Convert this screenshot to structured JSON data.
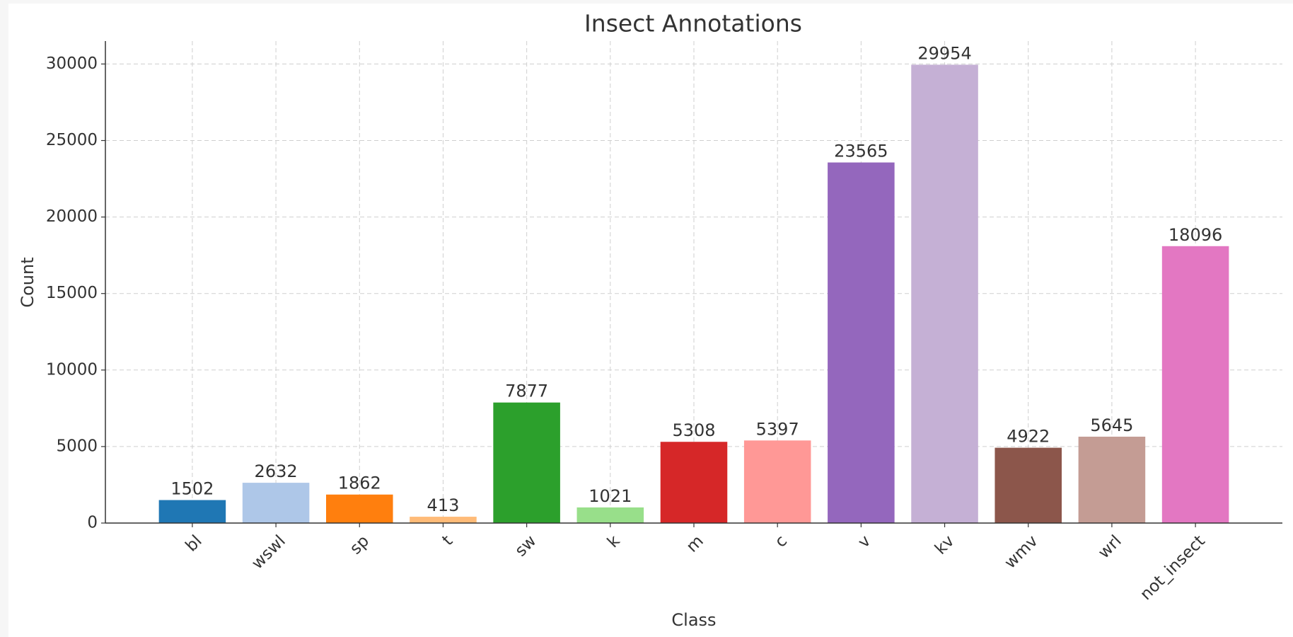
{
  "chart_data": {
    "type": "bar",
    "title": "Insect Annotations",
    "xlabel": "Class",
    "ylabel": "Count",
    "categories": [
      "bl",
      "wswl",
      "sp",
      "t",
      "sw",
      "k",
      "m",
      "c",
      "v",
      "kv",
      "wmv",
      "wrl",
      "not_insect"
    ],
    "values": [
      1502,
      2632,
      1862,
      413,
      7877,
      1021,
      5308,
      5397,
      23565,
      29954,
      4922,
      5645,
      18096
    ],
    "colors": [
      "#1f77b4",
      "#aec7e8",
      "#ff7f0e",
      "#ffbb78",
      "#2ca02c",
      "#98df8a",
      "#d62728",
      "#ff9896",
      "#9467bd",
      "#c5b0d5",
      "#8c564b",
      "#c49c94",
      "#e377c2"
    ],
    "ylim": [
      0,
      31500
    ],
    "yticks": [
      0,
      5000,
      10000,
      15000,
      20000,
      25000,
      30000
    ],
    "grid": true
  }
}
